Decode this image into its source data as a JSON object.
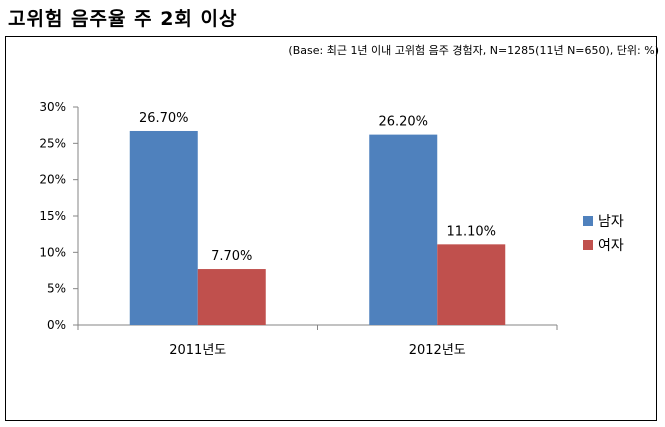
{
  "title": "고위험 음주율 주 2회 이상",
  "note": "(Base: 최근 1년 이내 고위험 음주 경험자, N=1285(11년 N=650), 단위: %)",
  "chart_data": {
    "type": "bar",
    "categories": [
      "2011년도",
      "2012년도"
    ],
    "series": [
      {
        "name": "남자",
        "values": [
          26.7,
          26.2
        ],
        "labels": [
          "26.70%",
          "26.20%"
        ],
        "color": "#4F81BD"
      },
      {
        "name": "여자",
        "values": [
          7.7,
          11.1
        ],
        "labels": [
          "7.70%",
          "11.10%"
        ],
        "color": "#C0504D"
      }
    ],
    "yticks": [
      "0%",
      "5%",
      "10%",
      "15%",
      "20%",
      "25%",
      "30%"
    ],
    "ylim": [
      0,
      30
    ],
    "legend_position": "right",
    "grid": false
  }
}
